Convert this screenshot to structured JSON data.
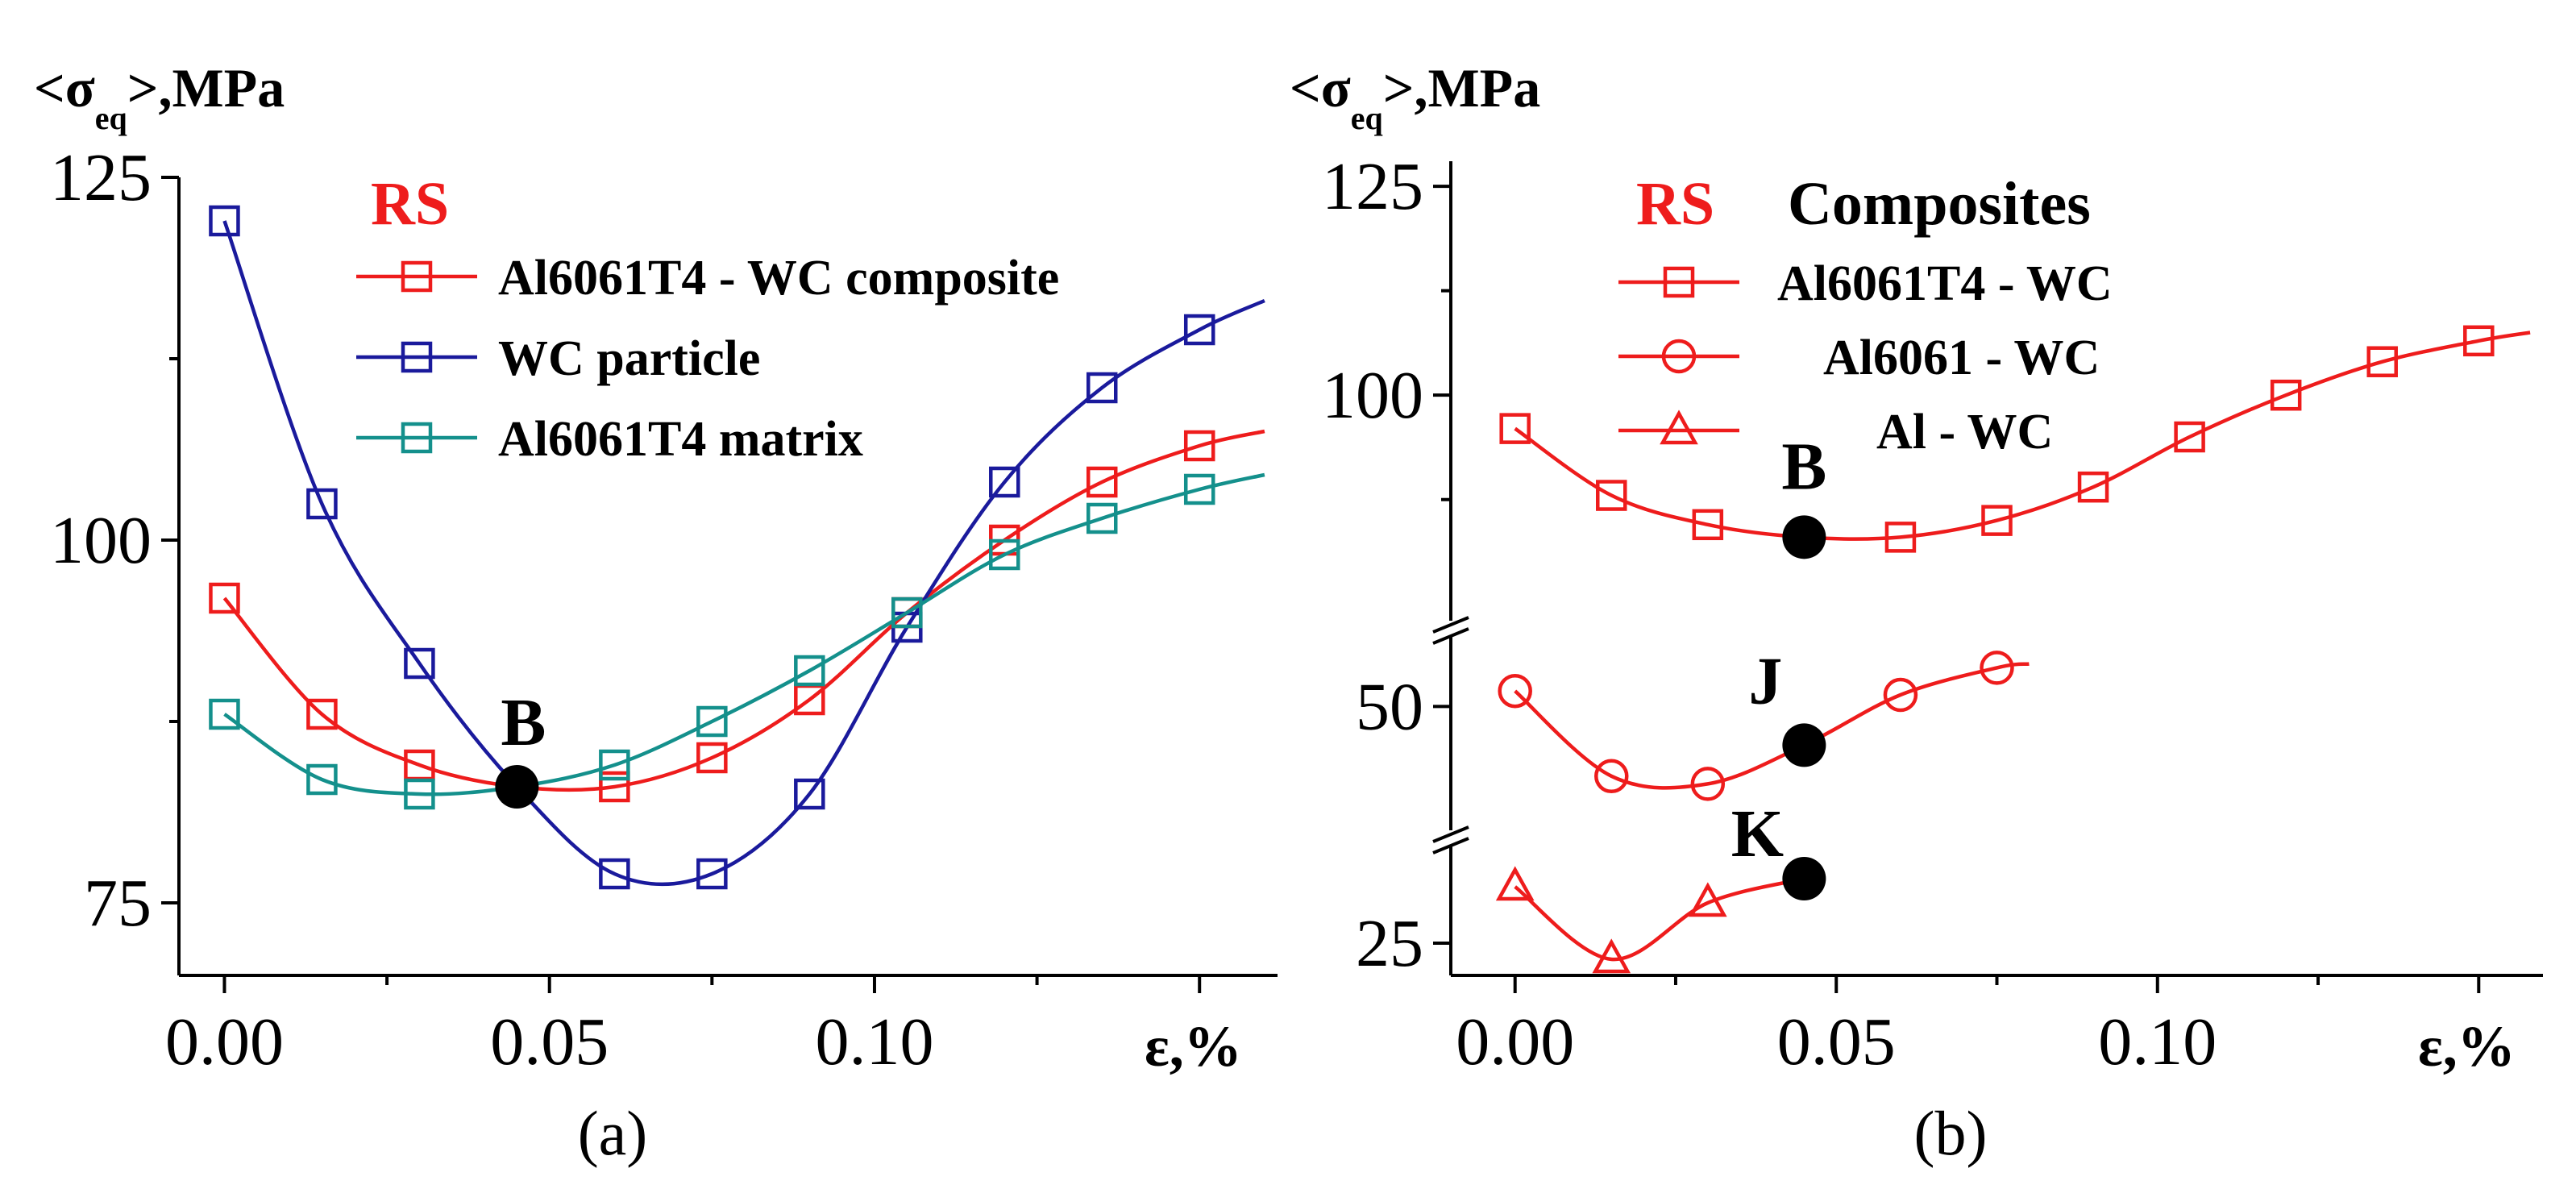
{
  "chart_data": [
    {
      "type": "line",
      "panel_label": "(a)",
      "title": "RS",
      "ylabel": "<σ",
      "ylabel_sub": "eq",
      "ylabel_tail": ">,MPa",
      "xlabel": "ε,%",
      "xlim": [
        -0.007,
        0.162
      ],
      "ylim": [
        70,
        125
      ],
      "xticks": [
        0.0,
        0.05,
        0.1
      ],
      "xtick_labels": [
        "0.00",
        "0.05",
        "0.10"
      ],
      "yticks": [
        75,
        100,
        125
      ],
      "ytick_labels": [
        "75",
        "100",
        "125"
      ],
      "legend_position": "upper-center",
      "series": [
        {
          "name": "Al6061T4 - WC composite",
          "color": "#ee1c1c",
          "marker": "square",
          "x": [
            0.0,
            0.015,
            0.03,
            0.045,
            0.06,
            0.075,
            0.09,
            0.105,
            0.12,
            0.135,
            0.15
          ],
          "y": [
            96.0,
            88.0,
            84.5,
            83.0,
            83.0,
            85.0,
            89.0,
            95.0,
            100.0,
            104.0,
            106.5
          ],
          "curve_end": [
            0.16,
            107.5
          ]
        },
        {
          "name": "WC particle",
          "color": "#1a1a9c",
          "marker": "square",
          "x": [
            0.0,
            0.015,
            0.03,
            0.045,
            0.06,
            0.075,
            0.09,
            0.105,
            0.12,
            0.135,
            0.15
          ],
          "y": [
            122.0,
            102.5,
            91.5,
            83.0,
            77.0,
            77.0,
            82.5,
            94.0,
            104.0,
            110.5,
            114.5
          ],
          "curve_end": [
            0.16,
            116.5
          ]
        },
        {
          "name": "Al6061T4 matrix",
          "color": "#14908c",
          "marker": "square",
          "x": [
            0.0,
            0.015,
            0.03,
            0.045,
            0.06,
            0.075,
            0.09,
            0.105,
            0.12,
            0.135,
            0.15
          ],
          "y": [
            88.0,
            83.5,
            82.5,
            83.0,
            84.5,
            87.5,
            91.0,
            95.0,
            99.0,
            101.5,
            103.5
          ],
          "curve_end": [
            0.16,
            104.5
          ]
        }
      ],
      "annotations": [
        {
          "label": "B",
          "x": 0.045,
          "y": 83.0
        }
      ]
    },
    {
      "type": "line",
      "panel_label": "(b)",
      "title": "RS",
      "title_extra": "Composites",
      "ylabel": "<σ",
      "ylabel_sub": "eq",
      "ylabel_tail": ">,MPa",
      "xlabel": "ε,%",
      "xlim": [
        -0.01,
        0.16
      ],
      "broken_y_axis": true,
      "yticks": [
        25,
        50,
        100,
        125
      ],
      "ytick_labels": [
        "25",
        "50",
        "100",
        "125"
      ],
      "legend_position": "upper-center",
      "xticks": [
        0.0,
        0.05,
        0.1
      ],
      "xtick_labels": [
        "0.00",
        "0.05",
        "0.10"
      ],
      "series": [
        {
          "name": "Al6061T4 - WC",
          "color": "#ee1c1c",
          "marker": "square",
          "x": [
            0.0,
            0.015,
            0.03,
            0.045,
            0.06,
            0.075,
            0.09,
            0.105,
            0.12,
            0.135,
            0.15
          ],
          "y": [
            96.0,
            88.0,
            84.5,
            83.0,
            83.0,
            85.0,
            89.0,
            95.0,
            100.0,
            104.0,
            106.5
          ],
          "curve_end": [
            0.158,
            107.5
          ]
        },
        {
          "name": "Al6061 - WC",
          "color": "#ee1c1c",
          "marker": "circle",
          "x": [
            0.0,
            0.015,
            0.03,
            0.045,
            0.06,
            0.075
          ],
          "y": [
            52.0,
            41.0,
            40.0,
            45.0,
            51.5,
            55.0
          ],
          "curve_end": [
            0.08,
            55.5
          ]
        },
        {
          "name": "Al - WC",
          "color": "#ee1c1c",
          "marker": "triangle",
          "x": [
            0.0,
            0.015,
            0.03,
            0.045
          ],
          "y": [
            28.5,
            24.0,
            27.5,
            29.0
          ],
          "curve_end": [
            0.045,
            29.0
          ]
        }
      ],
      "annotations": [
        {
          "label": "B",
          "x": 0.045,
          "y": 83.0
        },
        {
          "label": "J",
          "x": 0.045,
          "y": 45.0
        },
        {
          "label": "K",
          "x": 0.045,
          "y": 29.0
        }
      ]
    }
  ]
}
